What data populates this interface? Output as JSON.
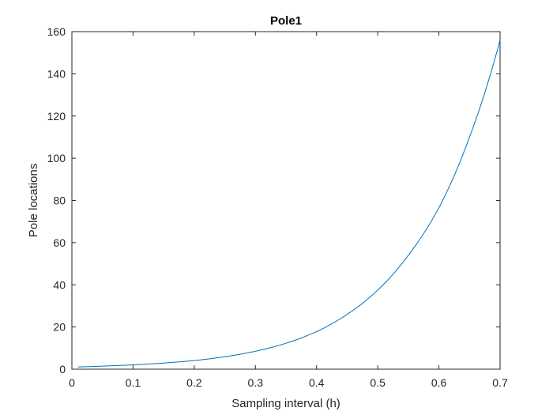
{
  "chart_data": {
    "type": "line",
    "title": "Pole1",
    "xlabel": "Sampling interval (h)",
    "ylabel": "Pole locations",
    "xlim": [
      0,
      0.7
    ],
    "ylim": [
      0,
      160
    ],
    "xticks": [
      0,
      0.1,
      0.2,
      0.3,
      0.4,
      0.5,
      0.6,
      0.7
    ],
    "yticks": [
      0,
      20,
      40,
      60,
      80,
      100,
      120,
      140,
      160
    ],
    "xtick_labels": [
      "0",
      "0.1",
      "0.2",
      "0.3",
      "0.4",
      "0.5",
      "0.6",
      "0.7"
    ],
    "ytick_labels": [
      "0",
      "20",
      "40",
      "60",
      "80",
      "100",
      "120",
      "140",
      "160"
    ],
    "grid": false,
    "line_color": "#0072bd",
    "series": [
      {
        "x": [
          0.01,
          0.05,
          0.1,
          0.15,
          0.2,
          0.25,
          0.3,
          0.35,
          0.4,
          0.45,
          0.5,
          0.55,
          0.6,
          0.65,
          0.7
        ],
        "y": [
          1.07,
          1.44,
          2.05,
          2.9,
          4.1,
          5.9,
          8.5,
          12.3,
          17.8,
          26.0,
          37.5,
          54.0,
          76.5,
          110.0,
          156.0
        ]
      }
    ]
  }
}
